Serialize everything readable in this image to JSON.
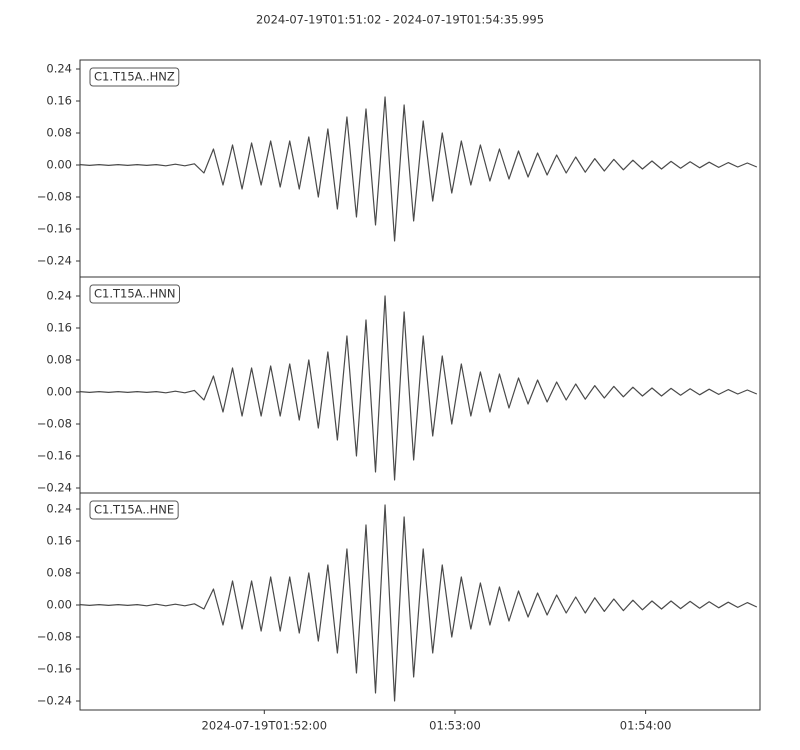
{
  "chart_data": [
    {
      "type": "line",
      "title": "2024-07-19T01:51:02  -  2024-07-19T01:54:35.995",
      "label": "C1.T15A..HNZ",
      "color": "#4a4a4a",
      "xlim": [
        "2024-07-19T01:51:02",
        "2024-07-19T01:54:35.995"
      ],
      "ylim": [
        -0.28,
        0.2625
      ],
      "yticks": [
        0.24,
        0.16,
        0.08,
        {
          "value": 0,
          "label": "0.00"
        },
        {
          "value": -0.08,
          "label": "−0.08"
        },
        {
          "value": -0.16,
          "label": "−0.16"
        },
        {
          "value": -0.24,
          "label": "−0.24"
        }
      ],
      "x": [
        "2024-07-19T01:51:02",
        "2024-07-19T01:51:05",
        "2024-07-19T01:51:08",
        "2024-07-19T01:51:11",
        "2024-07-19T01:51:14",
        "2024-07-19T01:51:17",
        "2024-07-19T01:51:20",
        "2024-07-19T01:51:23",
        "2024-07-19T01:51:26",
        "2024-07-19T01:51:29",
        "2024-07-19T01:51:32",
        "2024-07-19T01:51:35",
        "2024-07-19T01:51:38",
        "2024-07-19T01:51:41",
        "2024-07-19T01:51:44",
        "2024-07-19T01:51:47",
        "2024-07-19T01:51:50",
        "2024-07-19T01:51:53",
        "2024-07-19T01:51:56",
        "2024-07-19T01:51:59",
        "2024-07-19T01:52:02",
        "2024-07-19T01:52:05",
        "2024-07-19T01:52:08",
        "2024-07-19T01:52:11",
        "2024-07-19T01:52:14",
        "2024-07-19T01:52:17",
        "2024-07-19T01:52:20",
        "2024-07-19T01:52:23",
        "2024-07-19T01:52:26",
        "2024-07-19T01:52:29",
        "2024-07-19T01:52:32",
        "2024-07-19T01:52:35",
        "2024-07-19T01:52:38",
        "2024-07-19T01:52:41",
        "2024-07-19T01:52:44",
        "2024-07-19T01:52:47",
        "2024-07-19T01:52:50",
        "2024-07-19T01:52:53",
        "2024-07-19T01:52:56",
        "2024-07-19T01:52:59",
        "2024-07-19T01:53:02",
        "2024-07-19T01:53:05",
        "2024-07-19T01:53:08",
        "2024-07-19T01:53:11",
        "2024-07-19T01:53:14",
        "2024-07-19T01:53:17",
        "2024-07-19T01:53:20",
        "2024-07-19T01:53:23",
        "2024-07-19T01:53:26",
        "2024-07-19T01:53:29",
        "2024-07-19T01:53:32",
        "2024-07-19T01:53:35",
        "2024-07-19T01:53:38",
        "2024-07-19T01:53:41",
        "2024-07-19T01:53:44",
        "2024-07-19T01:53:47",
        "2024-07-19T01:53:50",
        "2024-07-19T01:53:53",
        "2024-07-19T01:53:56",
        "2024-07-19T01:53:59",
        "2024-07-19T01:54:02",
        "2024-07-19T01:54:05",
        "2024-07-19T01:54:08",
        "2024-07-19T01:54:11",
        "2024-07-19T01:54:14",
        "2024-07-19T01:54:17",
        "2024-07-19T01:54:20",
        "2024-07-19T01:54:23",
        "2024-07-19T01:54:26",
        "2024-07-19T01:54:29",
        "2024-07-19T01:54:32",
        "2024-07-19T01:54:35"
      ],
      "values": [
        0.001,
        -0.001,
        0.001,
        -0.001,
        0.001,
        -0.001,
        0.001,
        -0.001,
        0.001,
        -0.002,
        0.002,
        -0.002,
        0.003,
        -0.02,
        0.04,
        -0.05,
        0.05,
        -0.06,
        0.055,
        -0.05,
        0.06,
        -0.055,
        0.06,
        -0.06,
        0.07,
        -0.08,
        0.09,
        -0.11,
        0.12,
        -0.13,
        0.14,
        -0.15,
        0.17,
        -0.19,
        0.15,
        -0.14,
        0.11,
        -0.09,
        0.08,
        -0.07,
        0.06,
        -0.05,
        0.05,
        -0.04,
        0.04,
        -0.035,
        0.035,
        -0.03,
        0.03,
        -0.025,
        0.025,
        -0.02,
        0.02,
        -0.018,
        0.016,
        -0.015,
        0.014,
        -0.012,
        0.012,
        -0.01,
        0.01,
        -0.01,
        0.009,
        -0.008,
        0.008,
        -0.007,
        0.007,
        -0.006,
        0.006,
        -0.005,
        0.005,
        -0.005
      ]
    },
    {
      "type": "line",
      "label": "C1.T15A..HNN",
      "color": "#4a4a4a",
      "xlim": [
        "2024-07-19T01:51:02",
        "2024-07-19T01:54:35.995"
      ],
      "ylim": [
        -0.2525,
        0.2875
      ],
      "yticks": [
        0.24,
        0.16,
        0.08,
        {
          "value": 0,
          "label": "0.00"
        },
        {
          "value": -0.08,
          "label": "−0.08"
        },
        {
          "value": -0.16,
          "label": "−0.16"
        },
        {
          "value": -0.24,
          "label": "−0.24"
        }
      ],
      "x": [
        "2024-07-19T01:51:02",
        "2024-07-19T01:51:05",
        "2024-07-19T01:51:08",
        "2024-07-19T01:51:11",
        "2024-07-19T01:51:14",
        "2024-07-19T01:51:17",
        "2024-07-19T01:51:20",
        "2024-07-19T01:51:23",
        "2024-07-19T01:51:26",
        "2024-07-19T01:51:29",
        "2024-07-19T01:51:32",
        "2024-07-19T01:51:35",
        "2024-07-19T01:51:38",
        "2024-07-19T01:51:41",
        "2024-07-19T01:51:44",
        "2024-07-19T01:51:47",
        "2024-07-19T01:51:50",
        "2024-07-19T01:51:53",
        "2024-07-19T01:51:56",
        "2024-07-19T01:51:59",
        "2024-07-19T01:52:02",
        "2024-07-19T01:52:05",
        "2024-07-19T01:52:08",
        "2024-07-19T01:52:11",
        "2024-07-19T01:52:14",
        "2024-07-19T01:52:17",
        "2024-07-19T01:52:20",
        "2024-07-19T01:52:23",
        "2024-07-19T01:52:26",
        "2024-07-19T01:52:29",
        "2024-07-19T01:52:32",
        "2024-07-19T01:52:35",
        "2024-07-19T01:52:38",
        "2024-07-19T01:52:41",
        "2024-07-19T01:52:44",
        "2024-07-19T01:52:47",
        "2024-07-19T01:52:50",
        "2024-07-19T01:52:53",
        "2024-07-19T01:52:56",
        "2024-07-19T01:52:59",
        "2024-07-19T01:53:02",
        "2024-07-19T01:53:05",
        "2024-07-19T01:53:08",
        "2024-07-19T01:53:11",
        "2024-07-19T01:53:14",
        "2024-07-19T01:53:17",
        "2024-07-19T01:53:20",
        "2024-07-19T01:53:23",
        "2024-07-19T01:53:26",
        "2024-07-19T01:53:29",
        "2024-07-19T01:53:32",
        "2024-07-19T01:53:35",
        "2024-07-19T01:53:38",
        "2024-07-19T01:53:41",
        "2024-07-19T01:53:44",
        "2024-07-19T01:53:47",
        "2024-07-19T01:53:50",
        "2024-07-19T01:53:53",
        "2024-07-19T01:53:56",
        "2024-07-19T01:53:59",
        "2024-07-19T01:54:02",
        "2024-07-19T01:54:05",
        "2024-07-19T01:54:08",
        "2024-07-19T01:54:11",
        "2024-07-19T01:54:14",
        "2024-07-19T01:54:17",
        "2024-07-19T01:54:20",
        "2024-07-19T01:54:23",
        "2024-07-19T01:54:26",
        "2024-07-19T01:54:29",
        "2024-07-19T01:54:32",
        "2024-07-19T01:54:35"
      ],
      "values": [
        0.001,
        -0.001,
        0.001,
        -0.001,
        0.001,
        -0.001,
        0.001,
        -0.001,
        0.001,
        -0.002,
        0.002,
        -0.002,
        0.004,
        -0.02,
        0.04,
        -0.05,
        0.06,
        -0.06,
        0.06,
        -0.06,
        0.065,
        -0.06,
        0.07,
        -0.07,
        0.08,
        -0.09,
        0.1,
        -0.12,
        0.14,
        -0.16,
        0.18,
        -0.2,
        0.24,
        -0.22,
        0.2,
        -0.17,
        0.14,
        -0.11,
        0.09,
        -0.08,
        0.07,
        -0.06,
        0.05,
        -0.05,
        0.045,
        -0.04,
        0.035,
        -0.03,
        0.03,
        -0.025,
        0.025,
        -0.02,
        0.02,
        -0.018,
        0.016,
        -0.015,
        0.014,
        -0.012,
        0.012,
        -0.01,
        0.01,
        -0.01,
        0.009,
        -0.008,
        0.008,
        -0.007,
        0.007,
        -0.006,
        0.006,
        -0.005,
        0.005,
        -0.005
      ]
    },
    {
      "type": "line",
      "label": "C1.T15A..HNE",
      "color": "#4a4a4a",
      "xlim": [
        "2024-07-19T01:51:02",
        "2024-07-19T01:54:35.995"
      ],
      "ylim": [
        -0.2625,
        0.28
      ],
      "yticks": [
        0.24,
        0.16,
        0.08,
        {
          "value": 0,
          "label": "0.00"
        },
        {
          "value": -0.08,
          "label": "−0.08"
        },
        {
          "value": -0.16,
          "label": "−0.16"
        },
        {
          "value": -0.24,
          "label": "−0.24"
        }
      ],
      "xticks": [
        "2024-07-19T01:52:00",
        {
          "value": "2024-07-19T01:53:00",
          "label": "01:53:00"
        },
        {
          "value": "2024-07-19T01:54:00",
          "label": "01:54:00"
        }
      ],
      "x": [
        "2024-07-19T01:51:02",
        "2024-07-19T01:51:05",
        "2024-07-19T01:51:08",
        "2024-07-19T01:51:11",
        "2024-07-19T01:51:14",
        "2024-07-19T01:51:17",
        "2024-07-19T01:51:20",
        "2024-07-19T01:51:23",
        "2024-07-19T01:51:26",
        "2024-07-19T01:51:29",
        "2024-07-19T01:51:32",
        "2024-07-19T01:51:35",
        "2024-07-19T01:51:38",
        "2024-07-19T01:51:41",
        "2024-07-19T01:51:44",
        "2024-07-19T01:51:47",
        "2024-07-19T01:51:50",
        "2024-07-19T01:51:53",
        "2024-07-19T01:51:56",
        "2024-07-19T01:51:59",
        "2024-07-19T01:52:02",
        "2024-07-19T01:52:05",
        "2024-07-19T01:52:08",
        "2024-07-19T01:52:11",
        "2024-07-19T01:52:14",
        "2024-07-19T01:52:17",
        "2024-07-19T01:52:20",
        "2024-07-19T01:52:23",
        "2024-07-19T01:52:26",
        "2024-07-19T01:52:29",
        "2024-07-19T01:52:32",
        "2024-07-19T01:52:35",
        "2024-07-19T01:52:38",
        "2024-07-19T01:52:41",
        "2024-07-19T01:52:44",
        "2024-07-19T01:52:47",
        "2024-07-19T01:52:50",
        "2024-07-19T01:52:53",
        "2024-07-19T01:52:56",
        "2024-07-19T01:52:59",
        "2024-07-19T01:53:02",
        "2024-07-19T01:53:05",
        "2024-07-19T01:53:08",
        "2024-07-19T01:53:11",
        "2024-07-19T01:53:14",
        "2024-07-19T01:53:17",
        "2024-07-19T01:53:20",
        "2024-07-19T01:53:23",
        "2024-07-19T01:53:26",
        "2024-07-19T01:53:29",
        "2024-07-19T01:53:32",
        "2024-07-19T01:53:35",
        "2024-07-19T01:53:38",
        "2024-07-19T01:53:41",
        "2024-07-19T01:53:44",
        "2024-07-19T01:53:47",
        "2024-07-19T01:53:50",
        "2024-07-19T01:53:53",
        "2024-07-19T01:53:56",
        "2024-07-19T01:53:59",
        "2024-07-19T01:54:02",
        "2024-07-19T01:54:05",
        "2024-07-19T01:54:08",
        "2024-07-19T01:54:11",
        "2024-07-19T01:54:14",
        "2024-07-19T01:54:17",
        "2024-07-19T01:54:20",
        "2024-07-19T01:54:23",
        "2024-07-19T01:54:26",
        "2024-07-19T01:54:29",
        "2024-07-19T01:54:32",
        "2024-07-19T01:54:35"
      ],
      "values": [
        0.001,
        -0.001,
        0.001,
        -0.001,
        0.001,
        -0.001,
        0.001,
        -0.002,
        0.002,
        -0.002,
        0.002,
        -0.002,
        0.003,
        -0.01,
        0.04,
        -0.05,
        0.06,
        -0.06,
        0.06,
        -0.065,
        0.07,
        -0.065,
        0.07,
        -0.07,
        0.08,
        -0.09,
        0.1,
        -0.12,
        0.14,
        -0.17,
        0.2,
        -0.22,
        0.25,
        -0.24,
        0.22,
        -0.18,
        0.14,
        -0.12,
        0.1,
        -0.08,
        0.07,
        -0.06,
        0.055,
        -0.05,
        0.045,
        -0.04,
        0.035,
        -0.03,
        0.03,
        -0.025,
        0.025,
        -0.02,
        0.02,
        -0.02,
        0.018,
        -0.016,
        0.015,
        -0.014,
        0.012,
        -0.012,
        0.01,
        -0.01,
        0.01,
        -0.009,
        0.009,
        -0.008,
        0.008,
        -0.007,
        0.007,
        -0.006,
        0.006,
        -0.005
      ]
    }
  ]
}
